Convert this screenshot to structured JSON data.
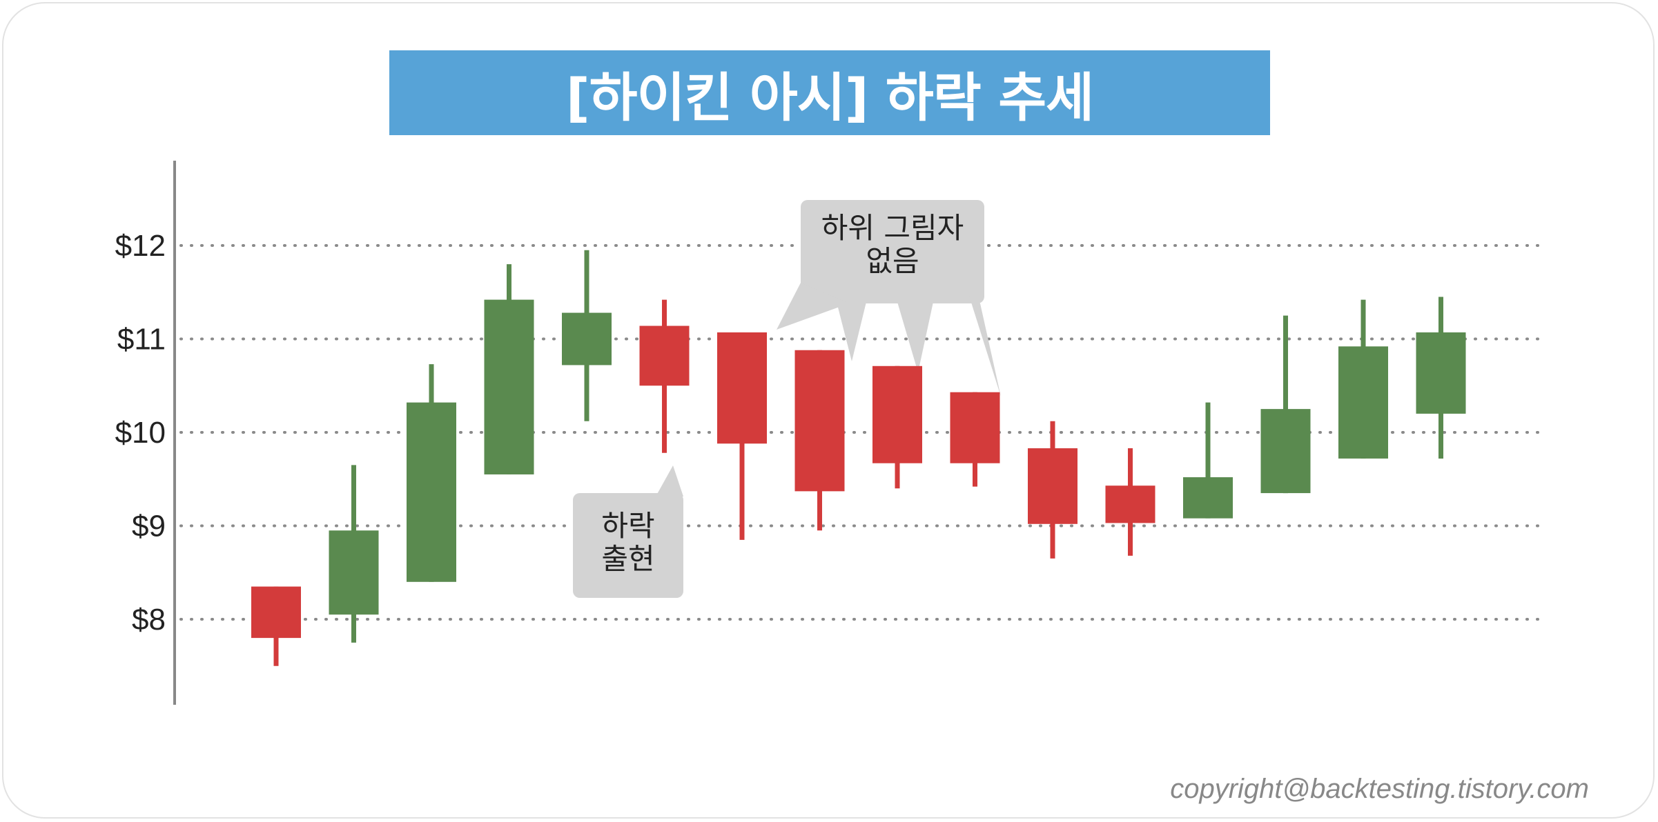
{
  "title": "[하이킨 아시] 하락 추세",
  "copyright": "copyright@backtesting.tistory.com",
  "colors": {
    "bullish": "#5a8a4f",
    "bearish": "#d33b3b",
    "title_bg": "#57a3d7",
    "callout_bg": "#d3d3d3",
    "grid": "#8a8a8a",
    "axis": "#888888"
  },
  "chart_data": {
    "type": "candlestick",
    "title": "[하이킨 아시] 하락 추세",
    "y_ticks": [
      {
        "value": 8,
        "label": "$8"
      },
      {
        "value": 9,
        "label": "$9"
      },
      {
        "value": 10,
        "label": "$10"
      },
      {
        "value": 11,
        "label": "$11"
      },
      {
        "value": 12,
        "label": "$12"
      }
    ],
    "ylim": [
      6.9,
      12.9
    ],
    "grid": "horizontal-dotted",
    "candles": [
      {
        "open": 8.35,
        "close": 7.8,
        "high": 8.35,
        "low": 7.5,
        "dir": "down"
      },
      {
        "open": 8.05,
        "close": 8.95,
        "high": 9.65,
        "low": 7.75,
        "dir": "up"
      },
      {
        "open": 8.4,
        "close": 10.32,
        "high": 10.73,
        "low": 8.4,
        "dir": "up"
      },
      {
        "open": 9.55,
        "close": 11.42,
        "high": 11.8,
        "low": 9.55,
        "dir": "up"
      },
      {
        "open": 10.72,
        "close": 11.28,
        "high": 11.95,
        "low": 10.12,
        "dir": "up"
      },
      {
        "open": 11.14,
        "close": 10.5,
        "high": 11.42,
        "low": 9.78,
        "dir": "down"
      },
      {
        "open": 11.07,
        "close": 9.88,
        "high": 11.07,
        "low": 8.85,
        "dir": "down"
      },
      {
        "open": 10.88,
        "close": 9.37,
        "high": 10.88,
        "low": 8.95,
        "dir": "down"
      },
      {
        "open": 10.71,
        "close": 9.67,
        "high": 10.71,
        "low": 9.4,
        "dir": "down"
      },
      {
        "open": 10.43,
        "close": 9.67,
        "high": 10.43,
        "low": 9.42,
        "dir": "down"
      },
      {
        "open": 9.83,
        "close": 9.02,
        "high": 10.12,
        "low": 8.65,
        "dir": "down"
      },
      {
        "open": 9.43,
        "close": 9.03,
        "high": 9.83,
        "low": 8.68,
        "dir": "down"
      },
      {
        "open": 9.08,
        "close": 9.52,
        "high": 10.32,
        "low": 9.08,
        "dir": "up"
      },
      {
        "open": 9.35,
        "close": 10.25,
        "high": 11.25,
        "low": 9.35,
        "dir": "up"
      },
      {
        "open": 9.72,
        "close": 10.92,
        "high": 11.42,
        "low": 9.72,
        "dir": "up"
      },
      {
        "open": 10.2,
        "close": 11.07,
        "high": 11.45,
        "low": 9.72,
        "dir": "up"
      }
    ],
    "annotations": [
      {
        "text_lines": [
          "하락",
          "출현"
        ],
        "points_to_candle": 6
      },
      {
        "text_lines": [
          "하위 그림자",
          "없음"
        ],
        "points_to_candles": [
          7,
          8,
          9,
          10
        ]
      }
    ]
  }
}
